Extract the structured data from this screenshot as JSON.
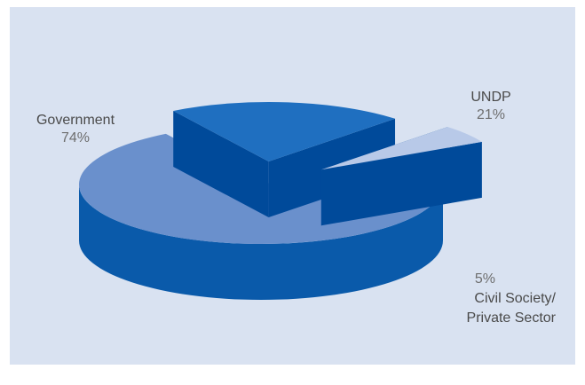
{
  "chart_data": {
    "type": "pie",
    "style": "3d-exploded",
    "title": "",
    "slices": [
      {
        "label": "Government",
        "value": 74,
        "value_label": "74%",
        "color": "#6a90cc",
        "side_color": "#0a5aaa"
      },
      {
        "label": "UNDP",
        "value": 21,
        "value_label": "21%",
        "color": "#1f6fc0",
        "side_color": "#0a5aaa"
      },
      {
        "label": "Civil Society/ Private Sector",
        "label_lines": [
          "Civil Society/",
          "Private Sector"
        ],
        "value": 5,
        "value_label": "5%",
        "color": "#b8c9e8",
        "side_color": "#0a5aaa"
      }
    ],
    "background": "#d9e2f1"
  }
}
